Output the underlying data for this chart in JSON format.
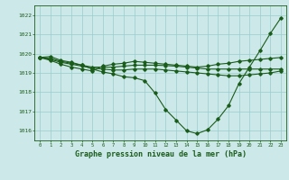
{
  "background_color": "#cce8e8",
  "grid_color": "#99cccc",
  "line_color": "#1a5c1a",
  "title": "Graphe pression niveau de la mer (hPa)",
  "xlim": [
    -0.5,
    23.5
  ],
  "ylim": [
    1015.5,
    1022.5
  ],
  "yticks": [
    1016,
    1017,
    1018,
    1019,
    1020,
    1021,
    1022
  ],
  "xticks": [
    0,
    1,
    2,
    3,
    4,
    5,
    6,
    7,
    8,
    9,
    10,
    11,
    12,
    13,
    14,
    15,
    16,
    17,
    18,
    19,
    20,
    21,
    22,
    23
  ],
  "series": [
    [
      1019.8,
      1019.85,
      1019.65,
      1019.55,
      1019.4,
      1019.2,
      1019.05,
      1018.95,
      1018.8,
      1018.75,
      1018.6,
      1017.95,
      1017.1,
      1016.55,
      1016.0,
      1015.85,
      1016.05,
      1016.6,
      1017.3,
      1018.45,
      1019.3,
      1020.15,
      1021.05,
      1021.85
    ],
    [
      1019.8,
      1019.65,
      1019.45,
      1019.3,
      1019.2,
      1019.1,
      1019.35,
      1019.45,
      1019.5,
      1019.6,
      1019.55,
      1019.5,
      1019.45,
      1019.4,
      1019.35,
      1019.3,
      1019.35,
      1019.45,
      1019.5,
      1019.6,
      1019.65,
      1019.7,
      1019.75,
      1019.8
    ],
    [
      1019.8,
      1019.7,
      1019.55,
      1019.45,
      1019.35,
      1019.25,
      1019.2,
      1019.15,
      1019.15,
      1019.2,
      1019.2,
      1019.2,
      1019.15,
      1019.1,
      1019.05,
      1019.0,
      1018.95,
      1018.9,
      1018.85,
      1018.85,
      1018.9,
      1018.95,
      1019.0,
      1019.1
    ],
    [
      1019.8,
      1019.75,
      1019.6,
      1019.5,
      1019.4,
      1019.3,
      1019.3,
      1019.3,
      1019.35,
      1019.4,
      1019.4,
      1019.4,
      1019.38,
      1019.35,
      1019.3,
      1019.25,
      1019.2,
      1019.2,
      1019.2,
      1019.2,
      1019.2,
      1019.2,
      1019.2,
      1019.2
    ]
  ]
}
